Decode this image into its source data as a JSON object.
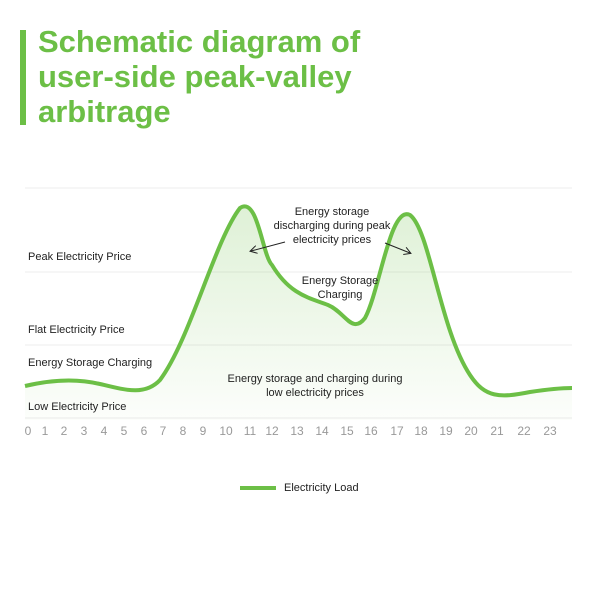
{
  "header": {
    "title": "Schematic diagram of user-side peak-valley arbitrage"
  },
  "band_labels": [
    "Peak Electricity Price",
    "Flat Electricity Price",
    "Energy Storage Charging",
    "Low Electricity Price"
  ],
  "hours": [
    "0",
    "1",
    "2",
    "3",
    "4",
    "5",
    "6",
    "7",
    "8",
    "9",
    "10",
    "11",
    "12",
    "13",
    "14",
    "15",
    "16",
    "17",
    "18",
    "19",
    "20",
    "21",
    "22",
    "23"
  ],
  "annotations": {
    "discharging": [
      "Energy storage",
      "discharging during peak",
      "electricity prices"
    ],
    "charging": [
      "Energy Storage",
      "Charging"
    ],
    "low": [
      "Energy storage and charging during",
      "low electricity prices"
    ]
  },
  "legend": "Electricity Load"
}
